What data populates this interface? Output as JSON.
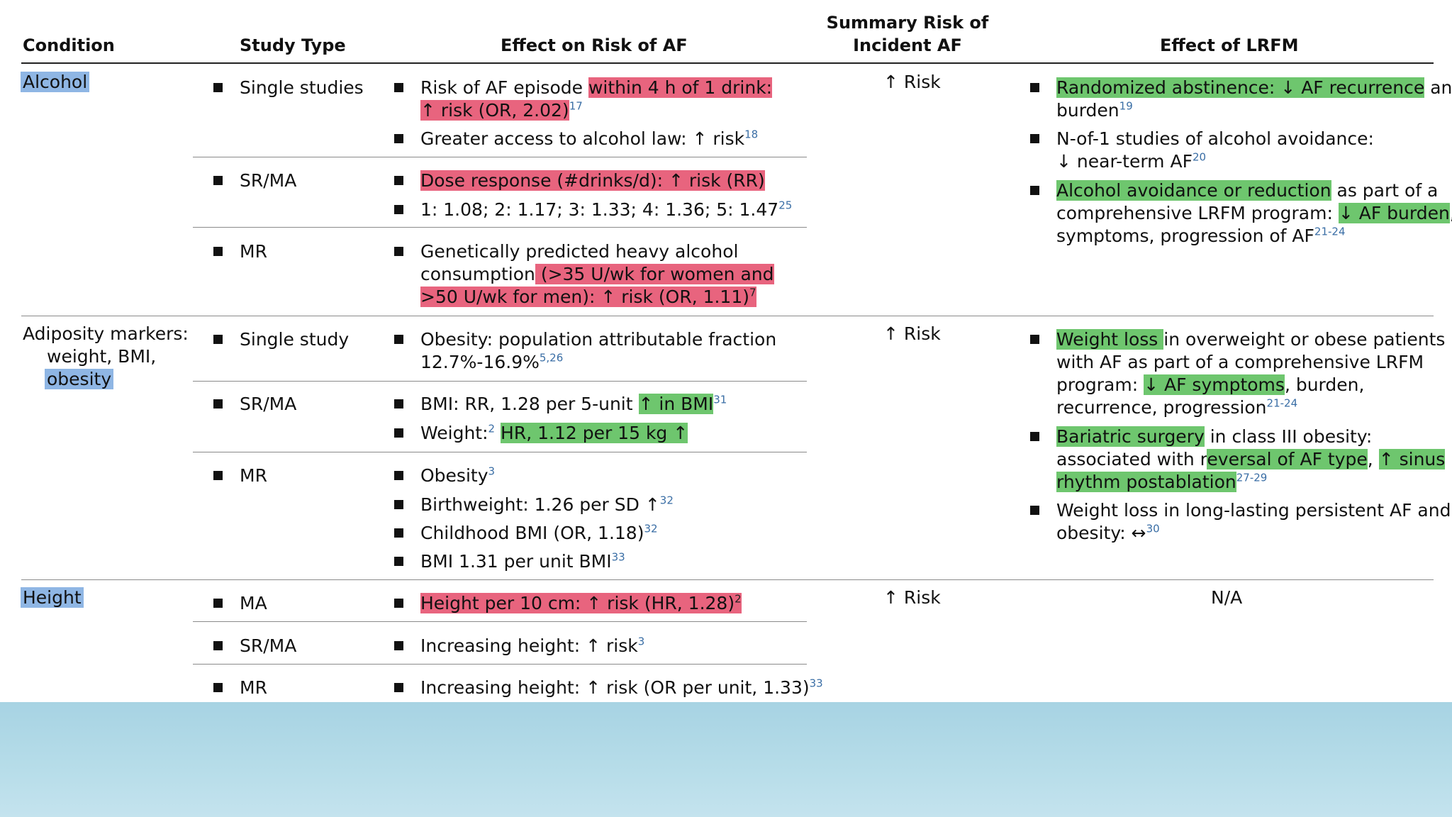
{
  "headers": {
    "condition": "Condition",
    "study_type": "Study Type",
    "effect": "Effect on Risk of AF",
    "summary_line1": "Summary Risk of",
    "summary_line2": "Incident AF",
    "lrfm": "Effect of LRFM"
  },
  "alcohol": {
    "condition": "Alcohol",
    "summary": "↑ Risk",
    "single_label": "Single studies",
    "single_e1_a": "Risk of AF episode ",
    "single_e1_b": "within 4 h of 1 drink:",
    "single_e1_c": "↑ risk (OR, 2.02)",
    "single_e1_ref": "17",
    "single_e2": "Greater access to alcohol law: ↑ risk",
    "single_e2_ref": "18",
    "srma_label": "SR/MA",
    "srma_e1": "Dose response (#drinks/d): ↑ risk (RR)",
    "srma_e2": "1: 1.08; 2: 1.17; 3: 1.33; 4: 1.36; 5: 1.47",
    "srma_e2_ref": "25",
    "mr_label": "MR",
    "mr_e1_a": "Genetically predicted heavy alcohol",
    "mr_e1_b": "consumption",
    "mr_e1_c": " (>35 U/wk for women and",
    "mr_e1_d": ">50 U/wk for men): ↑ risk (OR, 1.11)",
    "mr_e1_ref": "7",
    "lrfm1_a": "Randomized abstinence: ↓ AF recurrence",
    "lrfm1_b": " and",
    "lrfm1_c": "burden",
    "lrfm1_ref": "19",
    "lrfm2_a": "N-of-1 studies of alcohol avoidance:",
    "lrfm2_b": "↓ near-term AF",
    "lrfm2_ref": "20",
    "lrfm3_a": "Alcohol avoidance or reduction",
    "lrfm3_b": " as part of a",
    "lrfm3_c": "comprehensive LRFM program: ",
    "lrfm3_d": "↓ AF burden",
    "lrfm3_e": ",",
    "lrfm3_f": "symptoms, progression of AF",
    "lrfm3_ref": "21-24"
  },
  "adiposity": {
    "condition_l1": "Adiposity markers:",
    "condition_l2": "weight, BMI,",
    "condition_l3": "obesity",
    "summary": "↑ Risk",
    "single_label": "Single study",
    "single_e1_a": "Obesity: population attributable fraction",
    "single_e1_b": "12.7%-16.9%",
    "single_e1_ref": "5,26",
    "srma_label": "SR/MA",
    "srma_e1_a": "BMI: RR, 1.28 per 5-unit ",
    "srma_e1_b": "↑ in BMI",
    "srma_e1_ref": "31",
    "srma_e2_a": "Weight:",
    "srma_e2_ref": "2",
    "srma_e2_b": "HR, 1.12 per 15 kg ↑",
    "mr_label": "MR",
    "mr_e1": "Obesity",
    "mr_e1_ref": "3",
    "mr_e2": "Birthweight: 1.26 per SD ↑",
    "mr_e2_ref": "32",
    "mr_e3": "Childhood BMI (OR, 1.18)",
    "mr_e3_ref": "32",
    "mr_e4": "BMI 1.31 per unit BMI",
    "mr_e4_ref": "33",
    "lrfm1_a": "Weight loss ",
    "lrfm1_b": "in overweight or obese patients",
    "lrfm1_c": "with AF as part of a comprehensive LRFM",
    "lrfm1_d": "program: ",
    "lrfm1_e": "↓ AF symptoms",
    "lrfm1_f": ", burden,",
    "lrfm1_g": "recurrence, progression",
    "lrfm1_ref": "21-24",
    "lrfm2_a": "Bariatric surgery",
    "lrfm2_b": " in class III obesity:",
    "lrfm2_c": "associated with r",
    "lrfm2_d": "eversal of AF type",
    "lrfm2_e": ", ",
    "lrfm2_f": "↑ sinus",
    "lrfm2_g": "rhythm postablation",
    "lrfm2_ref": "27-29",
    "lrfm3_a": "Weight loss in long-lasting persistent AF and",
    "lrfm3_b": "obesity: ↔",
    "lrfm3_ref": "30"
  },
  "height": {
    "condition": "Height",
    "summary": "↑ Risk",
    "lrfm": "N/A",
    "ma_label": "MA",
    "ma_e1": "Height per 10 cm: ↑ risk (HR, 1.28)",
    "ma_e1_ref": "2",
    "srma_label": "SR/MA",
    "srma_e1": "Increasing height: ↑ risk",
    "srma_e1_ref": "3",
    "mr_label": "MR",
    "mr_e1": "Increasing height: ↑ risk (OR per unit, 1.33)",
    "mr_e1_ref": "33"
  },
  "colors": {
    "red_highlight": "#e8647e",
    "green_highlight": "#6ec66e",
    "blue_highlight": "#8fb6e4",
    "reference_blue": "#3a6ea5",
    "bottom_band": "#b7dde9"
  }
}
